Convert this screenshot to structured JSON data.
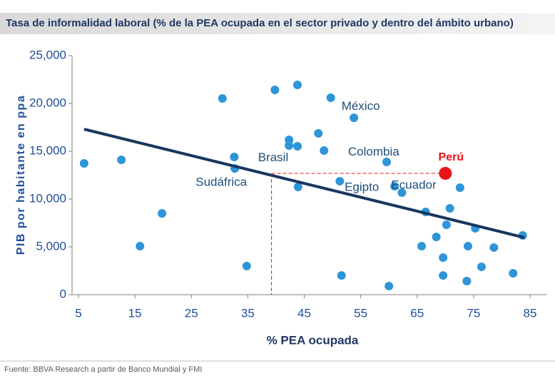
{
  "chart_data": {
    "type": "scatter",
    "title": "Tasa de informalidad laboral (% de la PEA ocupada en el sector privado y dentro del ámbito urbano)",
    "x_label": "% PEA ocupada",
    "y_label": "PIB por habitante en ppa",
    "source": "Fuente: BBVA Research a partir de Banco Mundial y FMI",
    "xlim": [
      5,
      88
    ],
    "ylim": [
      0,
      25000
    ],
    "xticks": [
      5,
      15,
      25,
      35,
      45,
      55,
      65,
      75,
      85
    ],
    "yticks": [
      0,
      {
        "value": 5000,
        "label": "5,000"
      },
      {
        "value": 10000,
        "label": "10,000"
      },
      {
        "value": 15000,
        "label": "15,000"
      },
      {
        "value": 20000,
        "label": "20,000"
      },
      {
        "value": 25000,
        "label": "25,000"
      }
    ],
    "series": [
      {
        "color": "#2e95d9",
        "x": [
          6.0,
          12.6,
          15.9,
          19.8,
          30.5,
          32.6,
          32.7,
          34.8,
          39.8,
          43.8,
          42.3,
          42.3,
          43.8,
          43.9,
          47.5,
          48.5,
          49.7,
          53.8,
          51.3,
          51.6,
          59.6,
          60.0,
          61.0,
          62.3,
          66.5,
          65.8,
          68.4,
          69.6,
          70.2,
          70.8,
          69.6,
          72.6,
          74.0,
          73.8,
          75.3,
          76.4,
          78.6,
          82.0,
          83.7
        ],
        "values": [
          13730,
          14100,
          5070,
          8500,
          20520,
          14400,
          13200,
          2990,
          21420,
          21940,
          16190,
          15600,
          15520,
          11270,
          16870,
          15070,
          20600,
          18500,
          11870,
          2010,
          13880,
          900,
          11340,
          10670,
          8660,
          5070,
          6040,
          3880,
          7310,
          9030,
          2010,
          11190,
          5070,
          1420,
          6940,
          2910,
          4930,
          2240,
          6190
        ]
      }
    ],
    "highlight": {
      "label": "Perú",
      "color": "#e8141a",
      "x": 70.0,
      "y": 12690,
      "reference_x": 39.2
    },
    "trend": {
      "color": "#17375e",
      "x": [
        6.0,
        84.0
      ],
      "values": [
        17310,
        5970
      ]
    },
    "annotations": [
      {
        "text": "México",
        "x": 55.0,
        "y": 19650
      },
      {
        "text": "Brasil",
        "x": 39.5,
        "y": 14300
      },
      {
        "text": "Colombia",
        "x": 57.3,
        "y": 14900
      },
      {
        "text": "Sudáfrica",
        "x": 30.3,
        "y": 11700
      },
      {
        "text": "Egipto",
        "x": 55.2,
        "y": 11200
      },
      {
        "text": "Ecuador",
        "x": 64.4,
        "y": 11400
      }
    ]
  }
}
